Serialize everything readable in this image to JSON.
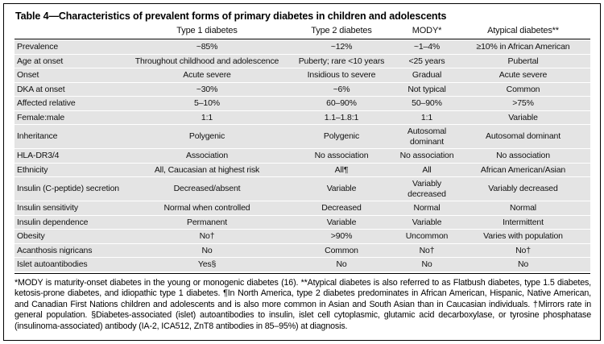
{
  "table": {
    "title": "Table 4—Characteristics of prevalent forms of primary diabetes in children and adolescents",
    "columns": [
      "",
      "Type 1 diabetes",
      "Type 2 diabetes",
      "MODY*",
      "Atypical diabetes**"
    ],
    "rows": [
      {
        "label": "Prevalence",
        "values": [
          "~85%",
          "~12%",
          "~1–4%",
          "≥10% in African American"
        ]
      },
      {
        "label": "Age at onset",
        "values": [
          "Throughout childhood and adolescence",
          "Puberty; rare <10 years",
          "<25 years",
          "Pubertal"
        ]
      },
      {
        "label": "Onset",
        "values": [
          "Acute severe",
          "Insidious to severe",
          "Gradual",
          "Acute severe"
        ]
      },
      {
        "label": "DKA at onset",
        "values": [
          "~30%",
          "~6%",
          "Not typical",
          "Common"
        ]
      },
      {
        "label": "Affected relative",
        "values": [
          "5–10%",
          "60–90%",
          "50–90%",
          ">75%"
        ]
      },
      {
        "label": "Female:male",
        "values": [
          "1:1",
          "1.1–1.8:1",
          "1:1",
          "Variable"
        ]
      },
      {
        "label": "Inheritance",
        "values": [
          "Polygenic",
          "Polygenic",
          "Autosomal dominant",
          "Autosomal dominant"
        ]
      },
      {
        "label": "HLA-DR3/4",
        "values": [
          "Association",
          "No association",
          "No association",
          "No association"
        ]
      },
      {
        "label": "Ethnicity",
        "values": [
          "All, Caucasian at highest risk",
          "All¶",
          "All",
          "African American/Asian"
        ]
      },
      {
        "label": "Insulin (C-peptide) secretion",
        "values": [
          "Decreased/absent",
          "Variable",
          "Variably decreased",
          "Variably decreased"
        ]
      },
      {
        "label": "Insulin sensitivity",
        "values": [
          "Normal when controlled",
          "Decreased",
          "Normal",
          "Normal"
        ]
      },
      {
        "label": "Insulin dependence",
        "values": [
          "Permanent",
          "Variable",
          "Variable",
          "Intermittent"
        ]
      },
      {
        "label": "Obesity",
        "values": [
          "No†",
          ">90%",
          "Uncommon",
          "Varies with population"
        ]
      },
      {
        "label": "Acanthosis nigricans",
        "values": [
          "No",
          "Common",
          "No†",
          "No†"
        ]
      },
      {
        "label": "Islet autoantibodies",
        "values": [
          "Yes§",
          "No",
          "No",
          "No"
        ]
      }
    ],
    "footnote": "*MODY is maturity-onset diabetes in the young or monogenic diabetes (16). **Atypical diabetes is also referred to as Flatbush diabetes, type 1.5 diabetes, ketosis-prone diabetes, and idiopathic type 1 diabetes. ¶In North America, type 2 diabetes predominates in African American, Hispanic, Native American, and Canadian First Nations children and adolescents and is also more common in Asian and South Asian than in Caucasian individuals. †Mirrors rate in general population. §Diabetes-associated (islet) autoantibodies to insulin, islet cell cytoplasmic, glutamic acid decarboxylase, or tyrosine phosphatase (insulinoma-associated) antibody (IA-2, ICA512, ZnT8 antibodies in 85–95%) at diagnosis."
  },
  "colors": {
    "row_band": "#e4e4e4",
    "border": "#000000",
    "text": "#111111",
    "background": "#ffffff"
  }
}
